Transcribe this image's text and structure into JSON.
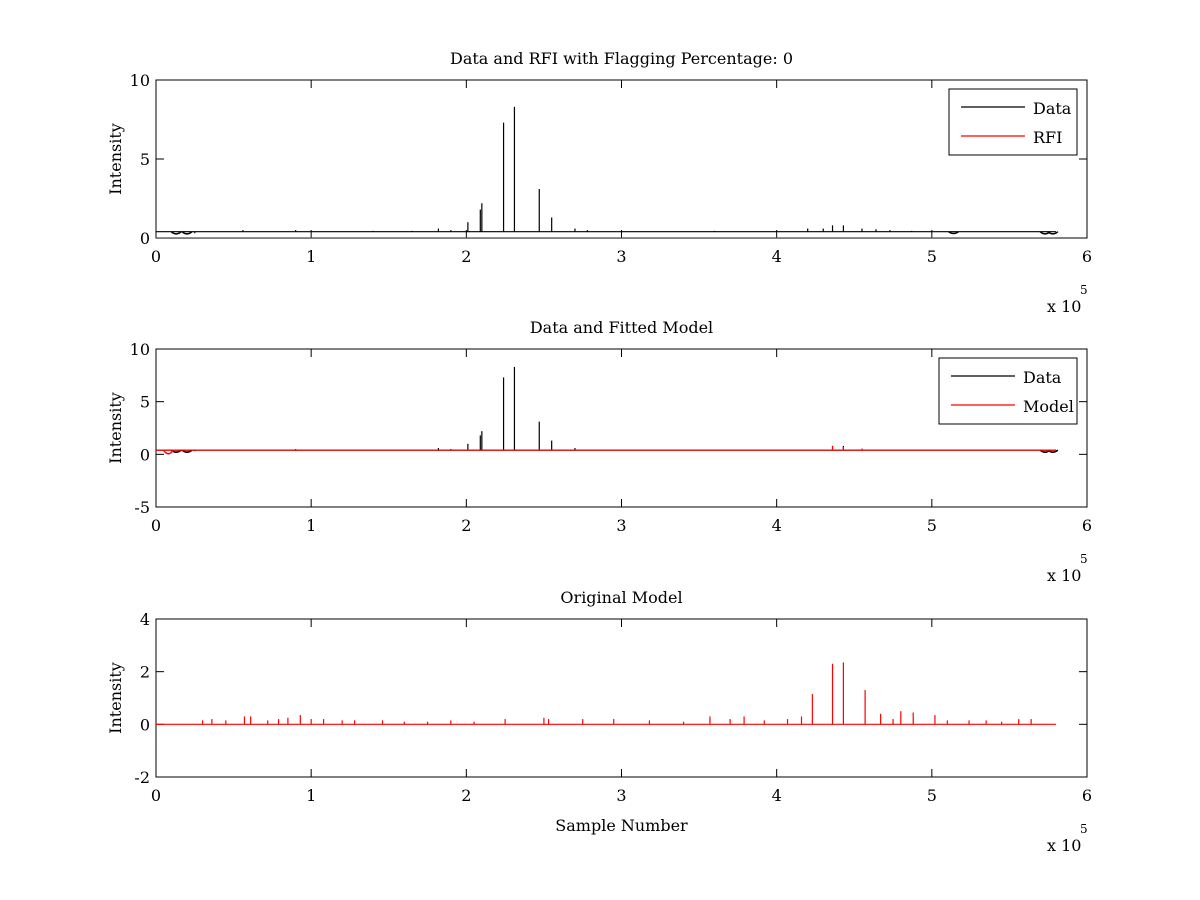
{
  "chart_data": [
    {
      "type": "line",
      "title": "Data and RFI with Flagging Percentage: 0",
      "xlabel": "",
      "ylabel": "Intensity",
      "xlim": [
        0,
        600000
      ],
      "ylim": [
        0,
        10
      ],
      "xticks": [
        0,
        100000,
        200000,
        300000,
        400000,
        500000,
        600000
      ],
      "xtick_labels": [
        "0",
        "1",
        "2",
        "3",
        "4",
        "5",
        "6"
      ],
      "yticks": [
        0,
        5,
        10
      ],
      "ytick_labels": [
        "0",
        "5",
        "10"
      ],
      "x_exponent": {
        "base": "x 10",
        "power": "5"
      },
      "grid": false,
      "legend": {
        "position": "top-right",
        "entries": [
          "Data",
          "RFI"
        ]
      },
      "series": [
        {
          "name": "Data",
          "color": "#000000",
          "baseline": 0.4,
          "spikes": [
            [
              25000,
              0.3
            ],
            [
              56000,
              0.5
            ],
            [
              90000,
              0.5
            ],
            [
              140000,
              0.45
            ],
            [
              165000,
              0.45
            ],
            [
              182000,
              0.6
            ],
            [
              190000,
              0.5
            ],
            [
              201000,
              1.0
            ],
            [
              209000,
              1.8
            ],
            [
              210000,
              2.2
            ],
            [
              224000,
              7.3
            ],
            [
              231000,
              8.3
            ],
            [
              247000,
              3.1
            ],
            [
              255000,
              1.3
            ],
            [
              270000,
              0.6
            ],
            [
              278000,
              0.5
            ],
            [
              360000,
              0.45
            ],
            [
              420000,
              0.6
            ],
            [
              430000,
              0.6
            ],
            [
              436000,
              0.8
            ],
            [
              443000,
              0.8
            ],
            [
              455000,
              0.6
            ],
            [
              464000,
              0.55
            ],
            [
              473000,
              0.5
            ],
            [
              487000,
              0.45
            ],
            [
              500000,
              0.45
            ]
          ],
          "dips": [
            [
              13000,
              0.25
            ],
            [
              20000,
              0.25
            ],
            [
              514000,
              0.3
            ],
            [
              573000,
              0.25
            ],
            [
              578000,
              0.25
            ]
          ]
        },
        {
          "name": "RFI",
          "color": "#ff0000",
          "baseline": 0,
          "spikes": []
        }
      ]
    },
    {
      "type": "line",
      "title": "Data and Fitted Model",
      "xlabel": "",
      "ylabel": "Intensity",
      "xlim": [
        0,
        600000
      ],
      "ylim": [
        -5,
        10
      ],
      "xticks": [
        0,
        100000,
        200000,
        300000,
        400000,
        500000,
        600000
      ],
      "xtick_labels": [
        "0",
        "1",
        "2",
        "3",
        "4",
        "5",
        "6"
      ],
      "yticks": [
        -5,
        0,
        5,
        10
      ],
      "ytick_labels": [
        "-5",
        "0",
        "5",
        "10"
      ],
      "x_exponent": {
        "base": "x 10",
        "power": "5"
      },
      "grid": false,
      "legend": {
        "position": "top-right",
        "entries": [
          "Data",
          "Model"
        ]
      },
      "series": [
        {
          "name": "Data",
          "color": "#000000",
          "baseline": 0.4,
          "spikes": [
            [
              25000,
              0.3
            ],
            [
              90000,
              0.5
            ],
            [
              182000,
              0.6
            ],
            [
              190000,
              0.5
            ],
            [
              201000,
              1.0
            ],
            [
              209000,
              1.8
            ],
            [
              210000,
              2.2
            ],
            [
              224000,
              7.3
            ],
            [
              231000,
              8.3
            ],
            [
              247000,
              3.1
            ],
            [
              255000,
              1.3
            ],
            [
              270000,
              0.6
            ],
            [
              436000,
              0.8
            ],
            [
              443000,
              0.8
            ]
          ],
          "dips": [
            [
              13000,
              0.2
            ],
            [
              20000,
              0.2
            ],
            [
              573000,
              0.2
            ],
            [
              578000,
              0.2
            ]
          ]
        },
        {
          "name": "Model",
          "color": "#ff0000",
          "baseline": 0.4,
          "spikes": [
            [
              436000,
              0.8
            ],
            [
              443000,
              0.7
            ],
            [
              455000,
              0.55
            ],
            [
              58000,
              0.45
            ],
            [
              93000,
              0.45
            ]
          ],
          "dips": [
            [
              8000,
              -0.1
            ]
          ]
        }
      ]
    },
    {
      "type": "line",
      "title": "Original Model",
      "xlabel": "Sample Number",
      "ylabel": "Intensity",
      "xlim": [
        0,
        600000
      ],
      "ylim": [
        -2,
        4
      ],
      "xticks": [
        0,
        100000,
        200000,
        300000,
        400000,
        500000,
        600000
      ],
      "xtick_labels": [
        "0",
        "1",
        "2",
        "3",
        "4",
        "5",
        "6"
      ],
      "yticks": [
        -2,
        0,
        2,
        4
      ],
      "ytick_labels": [
        "-2",
        "0",
        "2",
        "4"
      ],
      "x_exponent": {
        "base": "x 10",
        "power": "5"
      },
      "grid": false,
      "legend": null,
      "series": [
        {
          "name": "Original Model",
          "color": "#ff0000",
          "baseline": 0,
          "spikes": [
            [
              30000,
              0.15
            ],
            [
              36000,
              0.2
            ],
            [
              45000,
              0.15
            ],
            [
              57000,
              0.3
            ],
            [
              61000,
              0.3
            ],
            [
              72000,
              0.15
            ],
            [
              79000,
              0.2
            ],
            [
              85000,
              0.25
            ],
            [
              93000,
              0.35
            ],
            [
              100000,
              0.2
            ],
            [
              108000,
              0.2
            ],
            [
              120000,
              0.15
            ],
            [
              128000,
              0.15
            ],
            [
              146000,
              0.15
            ],
            [
              160000,
              0.1
            ],
            [
              175000,
              0.1
            ],
            [
              190000,
              0.15
            ],
            [
              205000,
              0.1
            ],
            [
              225000,
              0.2
            ],
            [
              250000,
              0.25
            ],
            [
              253000,
              0.2
            ],
            [
              275000,
              0.2
            ],
            [
              295000,
              0.2
            ],
            [
              318000,
              0.15
            ],
            [
              340000,
              0.1
            ],
            [
              357000,
              0.3
            ],
            [
              370000,
              0.2
            ],
            [
              379000,
              0.3
            ],
            [
              392000,
              0.15
            ],
            [
              407000,
              0.2
            ],
            [
              416000,
              0.3
            ],
            [
              423000,
              1.15
            ],
            [
              436000,
              2.3
            ],
            [
              443000,
              2.35
            ],
            [
              457000,
              1.3
            ],
            [
              467000,
              0.4
            ],
            [
              475000,
              0.2
            ],
            [
              480000,
              0.5
            ],
            [
              488000,
              0.45
            ],
            [
              502000,
              0.35
            ],
            [
              510000,
              0.15
            ],
            [
              524000,
              0.15
            ],
            [
              535000,
              0.15
            ],
            [
              545000,
              0.1
            ],
            [
              556000,
              0.2
            ],
            [
              564000,
              0.2
            ]
          ],
          "dips": []
        }
      ]
    }
  ]
}
